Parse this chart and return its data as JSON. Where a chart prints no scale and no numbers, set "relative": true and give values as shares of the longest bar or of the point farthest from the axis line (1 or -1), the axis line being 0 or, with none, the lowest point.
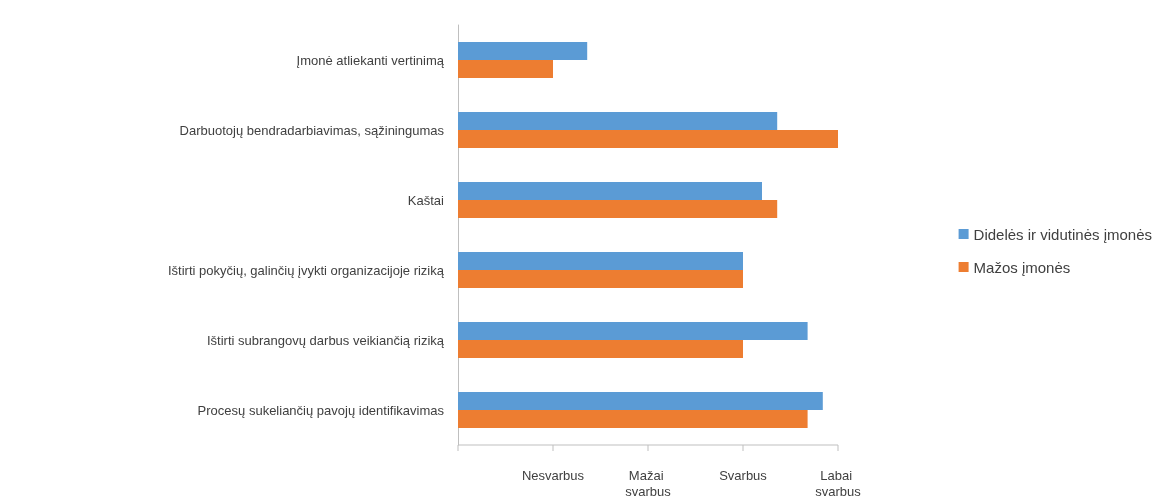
{
  "chart_data": {
    "type": "bar",
    "orientation": "horizontal",
    "relative": true,
    "categories": [
      "Įmonė atliekanti vertinimą",
      "Darbuotojų bendradarbiavimas, sąžiningumas",
      "Kaštai",
      "Ištirti pokyčių, galinčių įvykti organizacijoje riziką",
      "Ištirti subrangovų darbus veikiančią riziką",
      "Procesų sukeliančių pavojų identifikavimas"
    ],
    "series": [
      {
        "name": "Didelės ir vidutinės įmonės",
        "color": "#5b9bd5",
        "values": [
          0.34,
          0.84,
          0.8,
          0.75,
          0.92,
          0.96
        ]
      },
      {
        "name": "Mažos įmonės",
        "color": "#ed7d31",
        "values": [
          0.25,
          1,
          0.84,
          0.75,
          0.75,
          0.92
        ]
      }
    ],
    "annotations": [
      "Nesvarbus",
      "Mažai svarbus",
      "Svarbus",
      "Labai svarbus"
    ],
    "grid": false,
    "legend": "right"
  }
}
